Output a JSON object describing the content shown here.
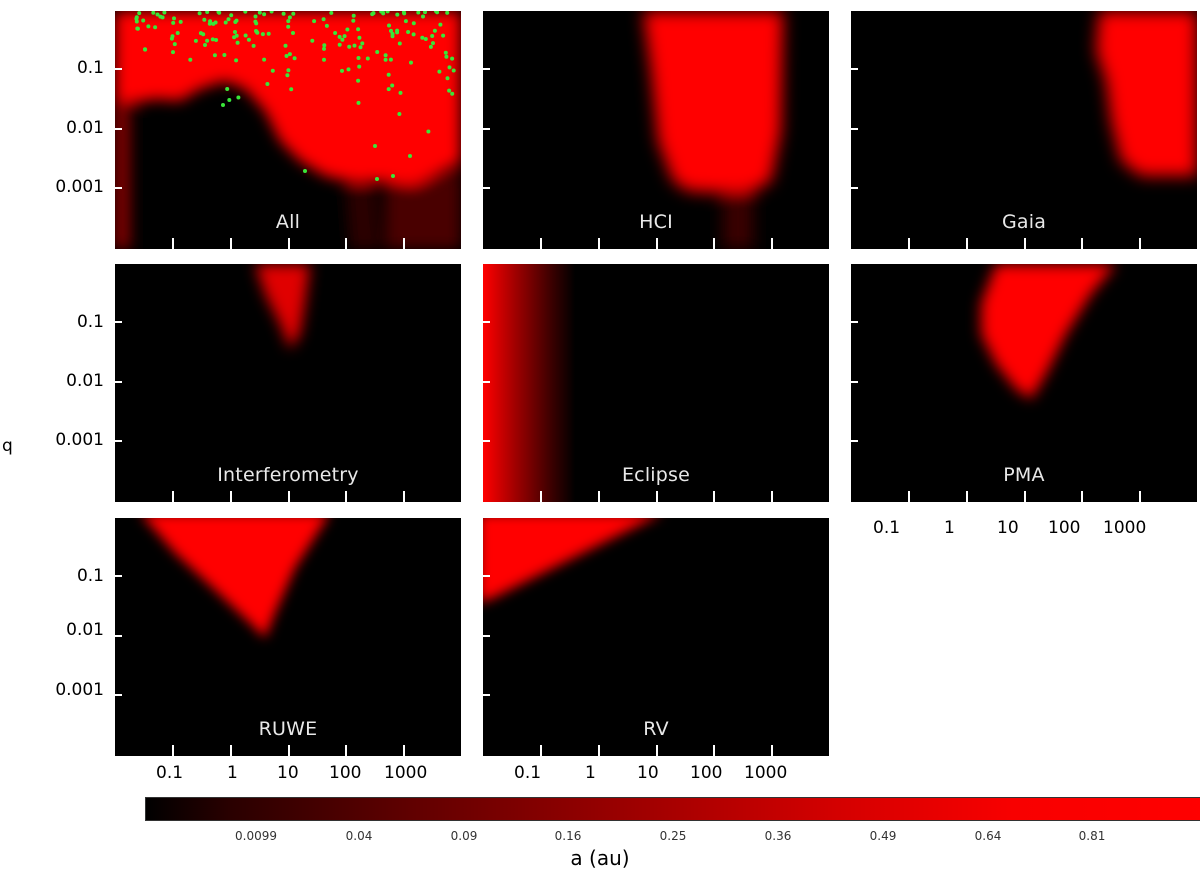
{
  "chart_data": {
    "type": "heatmap",
    "description_axes": {
      "x_ticks": [
        "0.1",
        "1",
        "10",
        "100",
        "1000"
      ],
      "y_ticks": [
        "0.1",
        "0.01",
        "0.001"
      ],
      "xscale": "log",
      "yscale": "log"
    },
    "ylabel": "q",
    "colorbar": {
      "label": "a (au)",
      "ticks": [
        "0.0099",
        "0.04",
        "0.09",
        "0.16",
        "0.25",
        "0.36",
        "0.49",
        "0.64",
        "0.81"
      ],
      "colormap": "black-to-red"
    },
    "panels": [
      {
        "name": "All"
      },
      {
        "name": "HCI"
      },
      {
        "name": "Gaia"
      },
      {
        "name": "Interferometry"
      },
      {
        "name": "Eclipse"
      },
      {
        "name": "PMA"
      },
      {
        "name": "RUWE"
      },
      {
        "name": "RV"
      }
    ],
    "scatter_color": "#39e639",
    "heat_color": "#ff0000"
  },
  "labels": {
    "q": "q",
    "x_ticks": [
      "0.1",
      "1",
      "10",
      "100",
      "1000"
    ],
    "y_ticks": [
      "0.1",
      "0.01",
      "0.001"
    ],
    "colorbar_label": "a (au)",
    "colorbar_ticks": [
      "0.0099",
      "0.04",
      "0.09",
      "0.16",
      "0.25",
      "0.36",
      "0.49",
      "0.64",
      "0.81"
    ]
  }
}
